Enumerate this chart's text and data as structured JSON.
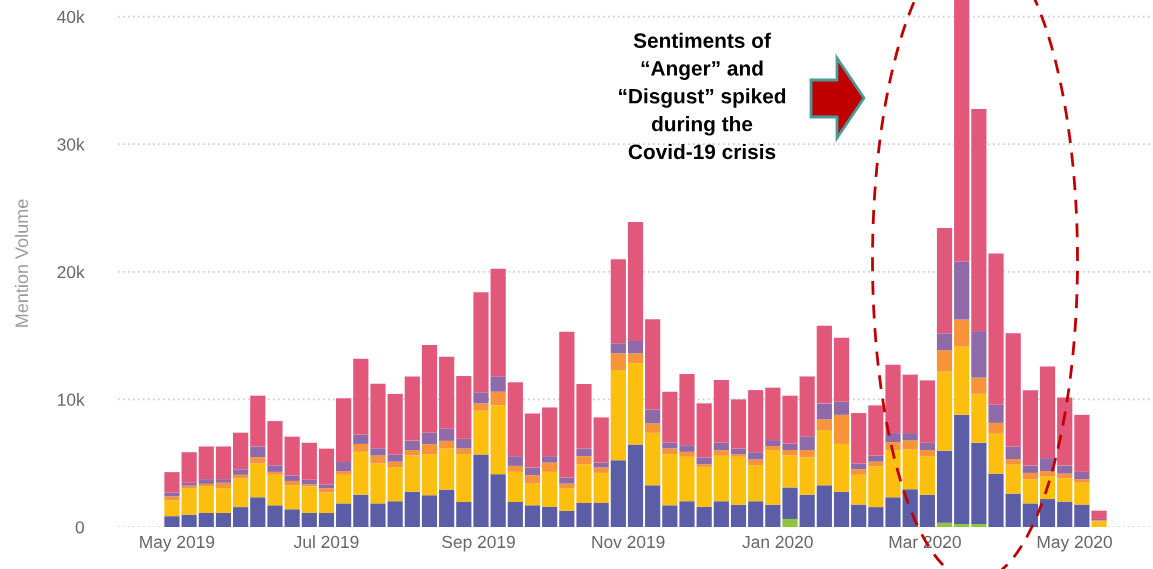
{
  "chart_data": {
    "type": "bar",
    "stacked": true,
    "ylabel": "Mention Volume",
    "x": [
      "2019-04-29",
      "2019-05-06",
      "2019-05-13",
      "2019-05-20",
      "2019-05-27",
      "2019-06-03",
      "2019-06-10",
      "2019-06-17",
      "2019-06-24",
      "2019-07-01",
      "2019-07-08",
      "2019-07-15",
      "2019-07-22",
      "2019-07-29",
      "2019-08-05",
      "2019-08-12",
      "2019-08-19",
      "2019-08-26",
      "2019-09-02",
      "2019-09-09",
      "2019-09-16",
      "2019-09-23",
      "2019-09-30",
      "2019-10-07",
      "2019-10-14",
      "2019-10-21",
      "2019-10-28",
      "2019-11-04",
      "2019-11-11",
      "2019-11-18",
      "2019-11-25",
      "2019-12-02",
      "2019-12-09",
      "2019-12-16",
      "2019-12-23",
      "2019-12-30",
      "2020-01-06",
      "2020-01-13",
      "2020-01-20",
      "2020-01-27",
      "2020-02-03",
      "2020-02-10",
      "2020-02-17",
      "2020-02-24",
      "2020-03-02",
      "2020-03-09",
      "2020-03-16",
      "2020-03-23",
      "2020-03-30",
      "2020-04-06",
      "2020-04-13",
      "2020-04-20",
      "2020-04-27",
      "2020-05-04",
      "2020-05-11"
    ],
    "series": [
      {
        "color": "#8cc63f",
        "values": [
          0,
          0,
          0,
          0,
          0,
          0,
          0,
          0,
          0,
          0,
          0,
          0,
          0,
          0,
          0,
          0,
          0,
          0,
          0,
          0,
          0,
          0,
          0,
          0,
          0,
          0,
          0,
          0,
          0,
          0,
          0,
          0,
          0,
          0,
          0,
          0,
          630,
          0,
          0,
          0,
          0,
          0,
          0,
          0,
          0,
          340,
          230,
          230,
          0,
          0,
          0,
          0,
          0,
          0,
          0
        ]
      },
      {
        "color": "#5b5ea6",
        "values": [
          850,
          970,
          1100,
          1100,
          1560,
          2330,
          1700,
          1390,
          1100,
          1100,
          1850,
          2530,
          1850,
          2020,
          2760,
          2490,
          2930,
          1960,
          5680,
          4140,
          1960,
          1700,
          1570,
          1260,
          1880,
          1880,
          5240,
          6470,
          3270,
          1700,
          2020,
          1570,
          2020,
          1750,
          2020,
          1750,
          2470,
          2530,
          3270,
          2760,
          1760,
          1560,
          2330,
          2960,
          2530,
          5630,
          8560,
          6370,
          4180,
          2620,
          1850,
          2190,
          1990,
          1760,
          0
        ]
      },
      {
        "color": "#fcbf10",
        "values": [
          1250,
          2070,
          2080,
          1940,
          2250,
          2650,
          2390,
          1880,
          2080,
          1600,
          2240,
          3360,
          3130,
          2670,
          2840,
          3220,
          3220,
          3750,
          3430,
          5410,
          2360,
          1700,
          2750,
          1750,
          3040,
          2360,
          7060,
          6360,
          4110,
          4010,
          3480,
          3140,
          3560,
          3750,
          2820,
          4270,
          2500,
          2930,
          4320,
          3750,
          2330,
          3190,
          3700,
          3120,
          2990,
          6230,
          5340,
          3840,
          3130,
          2270,
          1900,
          1760,
          1820,
          1710,
          430
        ]
      },
      {
        "color": "#f7943a",
        "values": [
          300,
          200,
          200,
          430,
          280,
          480,
          230,
          340,
          150,
          340,
          290,
          620,
          620,
          430,
          430,
          780,
          600,
          440,
          580,
          1050,
          470,
          660,
          730,
          390,
          630,
          420,
          1310,
          780,
          740,
          440,
          390,
          210,
          440,
          210,
          450,
          320,
          430,
          570,
          850,
          2280,
          430,
          370,
          620,
          720,
          510,
          1650,
          2130,
          1270,
          850,
          430,
          490,
          430,
          370,
          280,
          100
        ]
      },
      {
        "color": "#8f6aa8",
        "values": [
          300,
          230,
          370,
          280,
          430,
          850,
          510,
          430,
          370,
          290,
          710,
          740,
          570,
          570,
          740,
          890,
          950,
          760,
          860,
          1180,
          760,
          600,
          500,
          450,
          600,
          390,
          790,
          970,
          1090,
          470,
          520,
          530,
          600,
          440,
          570,
          470,
          510,
          1080,
          1230,
          1020,
          460,
          480,
          710,
          560,
          570,
          1330,
          4550,
          3640,
          1420,
          990,
          570,
          1020,
          630,
          570,
          100
        ]
      },
      {
        "color": "#e2587b",
        "values": [
          1600,
          2390,
          2560,
          2560,
          2870,
          3980,
          3470,
          3040,
          2900,
          2810,
          5000,
          5940,
          5060,
          4740,
          5030,
          6890,
          5650,
          4920,
          7850,
          8460,
          5790,
          4240,
          3820,
          11460,
          5050,
          3540,
          6590,
          9320,
          7070,
          3980,
          5580,
          4240,
          4900,
          3850,
          4870,
          4110,
          3750,
          4690,
          6110,
          5030,
          3950,
          3930,
          5350,
          4580,
          4890,
          8250,
          20490,
          17410,
          11860,
          8870,
          5910,
          7170,
          5340,
          4470,
          650
        ]
      }
    ],
    "xlim": [
      "2019-04-07",
      "2020-06-02"
    ],
    "xticks": [
      {
        "value": "2019-05-01",
        "label": "May 2019"
      },
      {
        "value": "2019-07-01",
        "label": "Jul 2019"
      },
      {
        "value": "2019-09-01",
        "label": "Sep 2019"
      },
      {
        "value": "2019-11-01",
        "label": "Nov 2019"
      },
      {
        "value": "2020-01-01",
        "label": "Jan 2020"
      },
      {
        "value": "2020-03-01",
        "label": "Mar 2020"
      },
      {
        "value": "2020-05-01",
        "label": "May 2020"
      }
    ],
    "ylim": [
      0,
      41300
    ],
    "yticks": [
      0,
      {
        "value": 10000,
        "label": "10k"
      },
      {
        "value": 20000,
        "label": "20k"
      },
      {
        "value": 30000,
        "label": "30k"
      },
      {
        "value": 40000,
        "label": "40k"
      }
    ],
    "grid": "y",
    "annotations": [
      "Sentiments of\n“Anger” and\n“Disgust” spiked\nduring the\nCovid-19 crisis"
    ]
  }
}
